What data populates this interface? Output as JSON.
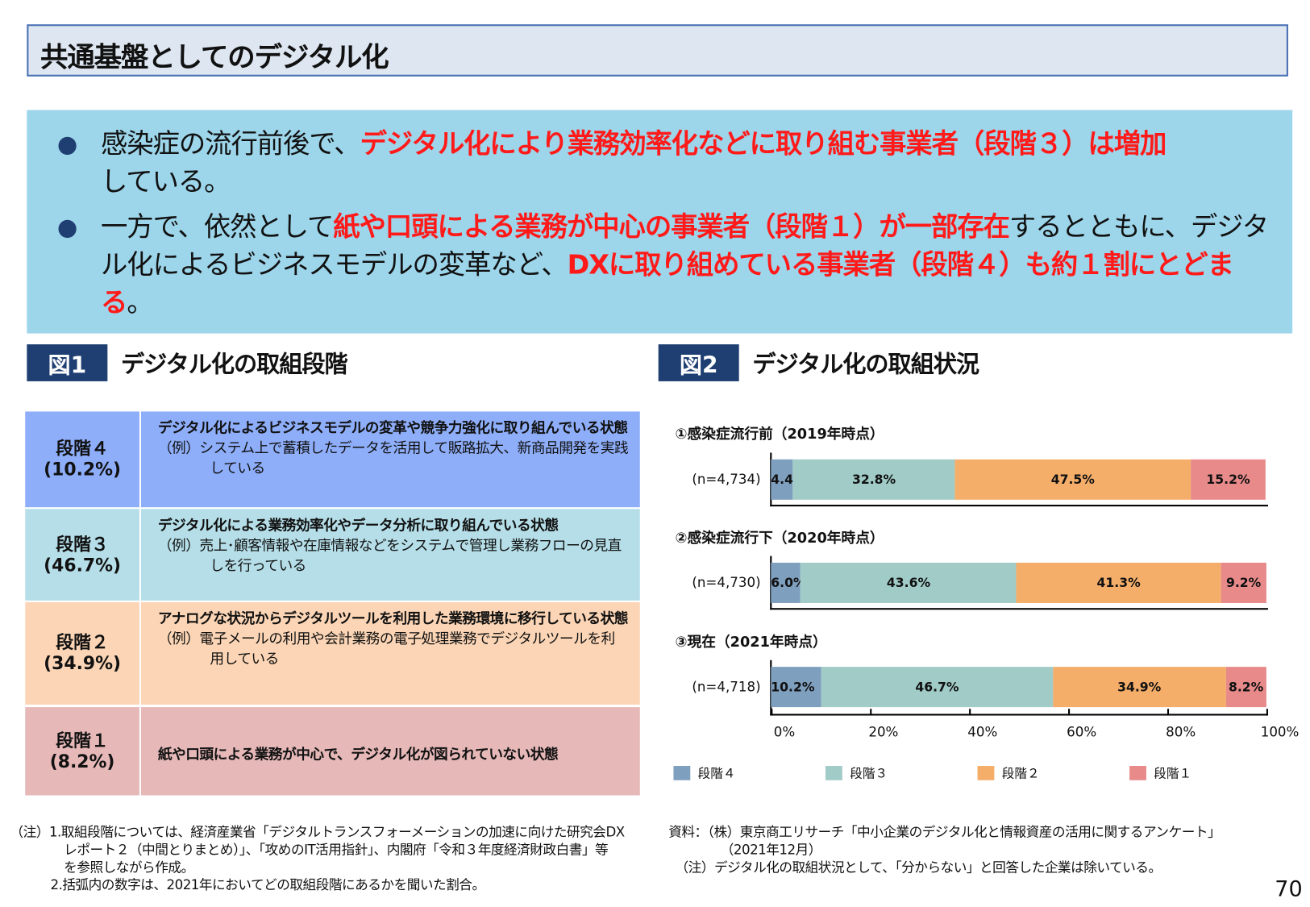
{
  "title": "共通基盤としてのデジタル化",
  "bullets": [
    {
      "plain1": "感染症の流行前後で、",
      "red1": "デジタル化により業務効率化などに取り組む事業者（段階３）は増加",
      "plain2": "している。"
    },
    {
      "plain1": "一方で、依然として",
      "red1": "紙や口頭による業務が中心の事業者（段階１）が一部存在",
      "plain2": "するとともに、デジタル化によるビジネスモデルの変革など、",
      "red2": "DXに取り組めている事業者（段階４）も約１割にとどまる",
      "plain3": "。"
    }
  ],
  "fig1": {
    "tag": "図1",
    "title": "デジタル化の取組段階",
    "stages": [
      {
        "name": "段階４",
        "pct": "(10.2%)",
        "desc": "デジタル化によるビジネスモデルの変革や競争力強化に取り組んでいる状態",
        "example": "（例）システム上で蓄積したデータを活用して販路拡大、新商品開発を実践している",
        "color": "#8eaefa"
      },
      {
        "name": "段階３",
        "pct": "(46.7%)",
        "desc": "デジタル化による業務効率化やデータ分析に取り組んでいる状態",
        "example": "（例）売上･顧客情報や在庫情報などをシステムで管理し業務フローの見直しを行っている",
        "color": "#b5dee8"
      },
      {
        "name": "段階２",
        "pct": "(34.9%)",
        "desc": "アナログな状況からデジタルツールを利用した業務環境に移行している状態",
        "example": "（例）電子メールの利用や会計業務の電子処理業務でデジタルツールを利用している",
        "color": "#fbd5b5"
      },
      {
        "name": "段階１",
        "pct": "(8.2%)",
        "desc": "紙や口頭による業務が中心で、デジタル化が図られていない状態",
        "example": "",
        "color": "#e6b8b8"
      }
    ]
  },
  "fig2": {
    "tag": "図2",
    "title": "デジタル化の取組状況"
  },
  "chart_data": {
    "type": "bar",
    "orientation": "horizontal",
    "stacked": true,
    "groups": [
      {
        "title": "①感染症流行前（2019年時点）",
        "n": "(n=4,734)",
        "values": [
          4.4,
          32.8,
          47.5,
          15.2
        ]
      },
      {
        "title": "②感染症流行下（2020年時点）",
        "n": "(n=4,730)",
        "values": [
          6.0,
          43.6,
          41.3,
          9.2
        ]
      },
      {
        "title": "③現在（2021年時点）",
        "n": "(n=4,718)",
        "values": [
          10.2,
          46.7,
          34.9,
          8.2
        ]
      }
    ],
    "series": [
      {
        "name": "段階４",
        "color": "#7f9fbf"
      },
      {
        "name": "段階３",
        "color": "#a0cbc7"
      },
      {
        "name": "段階２",
        "color": "#f4ae6a"
      },
      {
        "name": "段階１",
        "color": "#e88a8a"
      }
    ],
    "xlim": [
      0,
      100
    ],
    "xticks": [
      "0%",
      "20%",
      "40%",
      "60%",
      "80%",
      "100%"
    ],
    "legend": "bottom"
  },
  "notes_left": [
    "（注）1.取組段階については、経済産業省「デジタルトランスフォーメーションの加速に向けた研究会DX",
    "レポート２（中間とりまとめ）」、「攻めのIT活用指針」、内閣府「令和３年度経済財政白書」等",
    "を参照しながら作成。",
    "2.括弧内の数字は、2021年においてどの取組段階にあるかを聞いた割合。"
  ],
  "notes_right": [
    "資料：（株）東京商工リサーチ「中小企業のデジタル化と情報資産の活用に関するアンケート」",
    "（2021年12月）",
    "（注）デジタル化の取組状況として、「分からない」と回答した企業は除いている。"
  ],
  "page_number": "70"
}
